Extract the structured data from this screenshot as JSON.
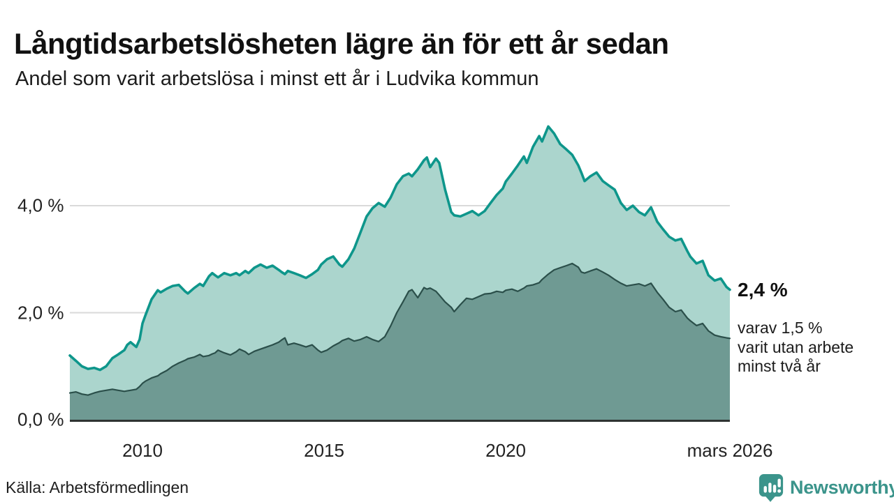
{
  "header": {
    "title": "Långtidsarbetslösheten lägre än för ett år sedan",
    "subtitle": "Andel som varit arbetslösa i minst ett år i Ludvika kommun"
  },
  "annotations": {
    "latest_value": "2,4 %",
    "detail": "varav 1,5 %\nvarit utan arbete\nminst två år"
  },
  "footer": {
    "source": "Källa: Arbetsförmedlingen",
    "brand": "Newsworthy"
  },
  "colors": {
    "line_1yr": "#0e968b",
    "fill_1yr": "#abd5cd",
    "line_2yr": "#2b4f4a",
    "fill_2yr": "#6f9a93",
    "gridline": "#dadada",
    "axis": "#2e3331",
    "brand_teal": "#3b948b"
  },
  "chart_data": {
    "type": "area",
    "title": "Långtidsarbetslösheten lägre än för ett år sedan",
    "subtitle": "Andel som varit arbetslösa i minst ett år i Ludvika kommun",
    "x_unit": "decimal_year",
    "xlim": [
      2008.0,
      2026.17
    ],
    "ylim": [
      0,
      5.8
    ],
    "grid": "horizontal",
    "legend_position": "none",
    "yticks": [
      {
        "value": 4,
        "label": "4,0 %"
      },
      {
        "value": 2,
        "label": "2,0 %"
      },
      {
        "value": 0,
        "label": "0,0 %"
      }
    ],
    "xticks": [
      {
        "value": 2010,
        "label": "2010"
      },
      {
        "value": 2015,
        "label": "2015"
      },
      {
        "value": 2020,
        "label": "2020"
      },
      {
        "value": 2026.17,
        "label": "mars 2026"
      }
    ],
    "x": [
      2008.0,
      2008.17,
      2008.33,
      2008.5,
      2008.67,
      2008.83,
      2009.0,
      2009.17,
      2009.33,
      2009.5,
      2009.58,
      2009.67,
      2009.83,
      2009.92,
      2010.0,
      2010.08,
      2010.25,
      2010.42,
      2010.5,
      2010.67,
      2010.83,
      2011.0,
      2011.17,
      2011.25,
      2011.42,
      2011.58,
      2011.67,
      2011.83,
      2011.92,
      2012.0,
      2012.08,
      2012.25,
      2012.42,
      2012.58,
      2012.67,
      2012.83,
      2012.92,
      2013.08,
      2013.25,
      2013.42,
      2013.58,
      2013.75,
      2013.83,
      2013.92,
      2014.0,
      2014.17,
      2014.33,
      2014.5,
      2014.67,
      2014.83,
      2014.92,
      2015.08,
      2015.25,
      2015.42,
      2015.5,
      2015.67,
      2015.83,
      2016.0,
      2016.17,
      2016.33,
      2016.5,
      2016.67,
      2016.83,
      2017.0,
      2017.17,
      2017.33,
      2017.42,
      2017.58,
      2017.75,
      2017.83,
      2017.92,
      2018.08,
      2018.17,
      2018.33,
      2018.5,
      2018.58,
      2018.75,
      2018.92,
      2019.08,
      2019.25,
      2019.42,
      2019.58,
      2019.75,
      2019.92,
      2020.0,
      2020.17,
      2020.33,
      2020.5,
      2020.58,
      2020.75,
      2020.92,
      2021.0,
      2021.17,
      2021.33,
      2021.5,
      2021.67,
      2021.83,
      2022.0,
      2022.08,
      2022.17,
      2022.33,
      2022.5,
      2022.67,
      2022.83,
      2023.0,
      2023.17,
      2023.33,
      2023.5,
      2023.67,
      2023.83,
      2024.0,
      2024.17,
      2024.33,
      2024.5,
      2024.67,
      2024.83,
      2025.0,
      2025.08,
      2025.25,
      2025.42,
      2025.58,
      2025.75,
      2025.92,
      2026.08,
      2026.17
    ],
    "series": [
      {
        "name": "Andel som varit arbetslösa minst ett år",
        "latest_label": "2,4 %",
        "line_color": "#0e968b",
        "fill_color": "#abd5cd",
        "values": [
          1.2,
          1.1,
          1.0,
          0.95,
          0.97,
          0.93,
          1.0,
          1.15,
          1.22,
          1.3,
          1.4,
          1.45,
          1.36,
          1.5,
          1.8,
          1.95,
          2.25,
          2.42,
          2.38,
          2.45,
          2.5,
          2.52,
          2.4,
          2.36,
          2.46,
          2.54,
          2.5,
          2.68,
          2.74,
          2.7,
          2.66,
          2.74,
          2.7,
          2.74,
          2.7,
          2.78,
          2.74,
          2.84,
          2.9,
          2.84,
          2.88,
          2.8,
          2.76,
          2.72,
          2.78,
          2.74,
          2.7,
          2.65,
          2.72,
          2.8,
          2.9,
          3.0,
          3.05,
          2.9,
          2.86,
          3.0,
          3.2,
          3.5,
          3.8,
          3.95,
          4.05,
          3.98,
          4.15,
          4.4,
          4.55,
          4.6,
          4.55,
          4.68,
          4.85,
          4.9,
          4.72,
          4.88,
          4.8,
          4.3,
          3.88,
          3.82,
          3.8,
          3.85,
          3.9,
          3.82,
          3.9,
          4.05,
          4.2,
          4.32,
          4.45,
          4.6,
          4.75,
          4.92,
          4.8,
          5.1,
          5.3,
          5.2,
          5.48,
          5.35,
          5.15,
          5.05,
          4.95,
          4.75,
          4.62,
          4.46,
          4.55,
          4.62,
          4.46,
          4.38,
          4.3,
          4.05,
          3.92,
          4.0,
          3.88,
          3.82,
          3.97,
          3.7,
          3.56,
          3.42,
          3.35,
          3.38,
          3.15,
          3.05,
          2.92,
          2.97,
          2.7,
          2.6,
          2.64,
          2.48,
          2.43
        ]
      },
      {
        "name": "varav arbetslösa minst två år",
        "latest_label": "1,5 %",
        "line_color": "#2b4f4a",
        "fill_color": "#6f9a93",
        "values": [
          0.5,
          0.52,
          0.48,
          0.46,
          0.5,
          0.53,
          0.55,
          0.57,
          0.55,
          0.53,
          0.54,
          0.55,
          0.57,
          0.62,
          0.68,
          0.72,
          0.78,
          0.82,
          0.86,
          0.92,
          1.0,
          1.06,
          1.11,
          1.14,
          1.17,
          1.22,
          1.18,
          1.2,
          1.23,
          1.25,
          1.3,
          1.25,
          1.21,
          1.27,
          1.32,
          1.27,
          1.22,
          1.28,
          1.32,
          1.36,
          1.4,
          1.45,
          1.49,
          1.53,
          1.4,
          1.43,
          1.4,
          1.36,
          1.4,
          1.3,
          1.26,
          1.3,
          1.38,
          1.44,
          1.48,
          1.52,
          1.47,
          1.5,
          1.55,
          1.5,
          1.46,
          1.55,
          1.75,
          2.0,
          2.2,
          2.4,
          2.43,
          2.28,
          2.47,
          2.44,
          2.46,
          2.4,
          2.33,
          2.2,
          2.1,
          2.02,
          2.15,
          2.27,
          2.25,
          2.3,
          2.35,
          2.36,
          2.4,
          2.38,
          2.42,
          2.44,
          2.4,
          2.46,
          2.5,
          2.52,
          2.56,
          2.62,
          2.72,
          2.8,
          2.84,
          2.88,
          2.92,
          2.85,
          2.76,
          2.74,
          2.78,
          2.82,
          2.76,
          2.7,
          2.62,
          2.55,
          2.5,
          2.52,
          2.54,
          2.5,
          2.55,
          2.38,
          2.25,
          2.1,
          2.02,
          2.05,
          1.9,
          1.85,
          1.76,
          1.8,
          1.66,
          1.58,
          1.55,
          1.53,
          1.52
        ]
      }
    ]
  }
}
